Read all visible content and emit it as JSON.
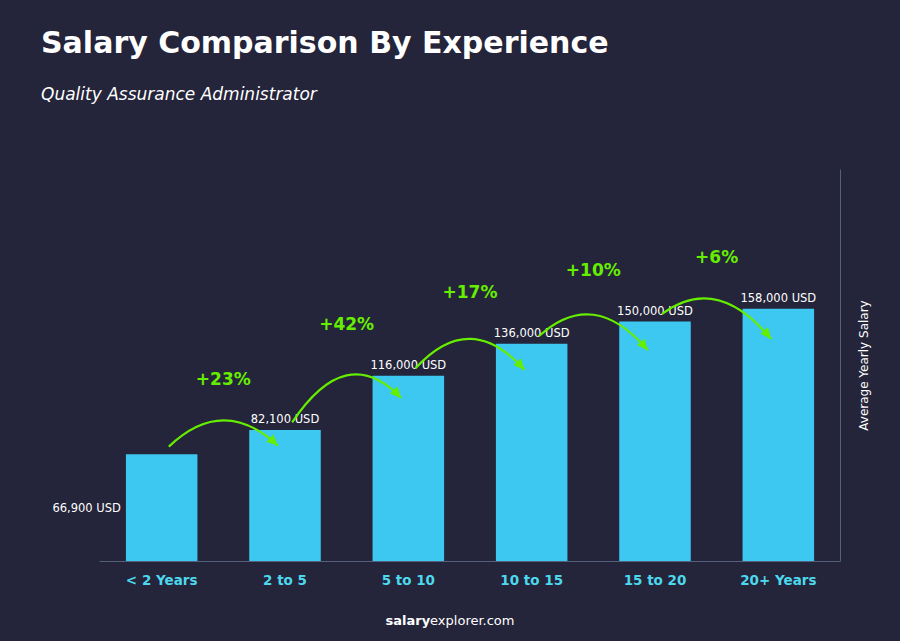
{
  "chart_data": {
    "type": "bar",
    "title": "Salary Comparison By Experience",
    "subtitle": "Quality Assurance Administrator",
    "ylabel": "Average Yearly Salary",
    "categories": [
      "< 2 Years",
      "2 to 5",
      "5 to 10",
      "10 to 15",
      "15 to 20",
      "20+ Years"
    ],
    "values": [
      66900,
      82100,
      116000,
      136000,
      150000,
      158000
    ],
    "value_labels": [
      "66,900 USD",
      "82,100 USD",
      "116,000 USD",
      "136,000 USD",
      "150,000 USD",
      "158,000 USD"
    ],
    "data_labels": true,
    "color": "#3cc8f0",
    "ylim": [
      0,
      244900
    ],
    "tick_labels": "x",
    "grid": false,
    "annotations": [
      {
        "text": "+23%",
        "from": "< 2 Years",
        "to": "2 to 5",
        "color": "#66ee00"
      },
      {
        "text": "+42%",
        "from": "2 to 5",
        "to": "5 to 10",
        "color": "#66ee00"
      },
      {
        "text": "+17%",
        "from": "5 to 10",
        "to": "10 to 15",
        "color": "#66ee00"
      },
      {
        "text": "+10%",
        "from": "10 to 15",
        "to": "15 to 20",
        "color": "#66ee00"
      },
      {
        "text": "+6%",
        "from": "15 to 20",
        "to": "20+ Years",
        "color": "#66ee00"
      }
    ],
    "footer_bold": "salary",
    "footer_rest": "explorer.com"
  }
}
